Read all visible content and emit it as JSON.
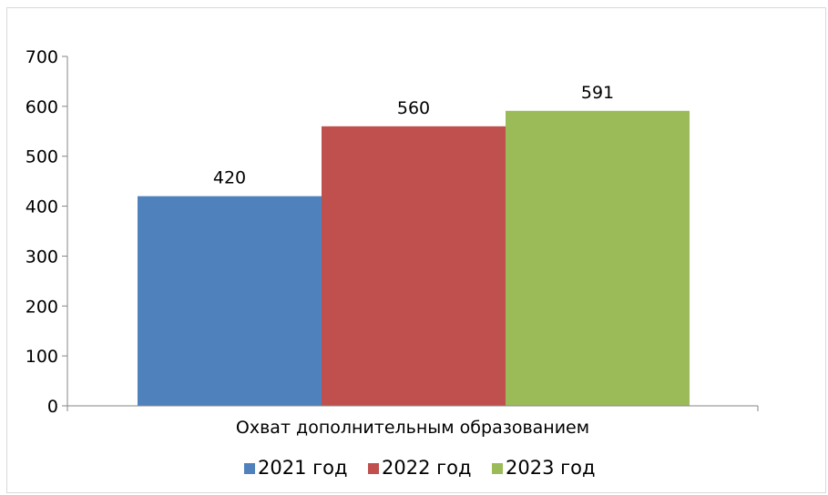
{
  "chart_data": {
    "type": "bar",
    "categories": [
      "Охват дополнительным образованием"
    ],
    "series": [
      {
        "name": "2021 год",
        "values": [
          420
        ],
        "color": "#4f81bd"
      },
      {
        "name": "2022 год",
        "values": [
          560
        ],
        "color": "#c0504d"
      },
      {
        "name": "2023 год",
        "values": [
          591
        ],
        "color": "#9bbb59"
      }
    ],
    "ylim": [
      0,
      700
    ],
    "yticks": [
      0,
      100,
      200,
      300,
      400,
      500,
      600,
      700
    ],
    "data_labels": [
      "420",
      "560",
      "591"
    ],
    "legend_position": "bottom",
    "grid": false
  }
}
